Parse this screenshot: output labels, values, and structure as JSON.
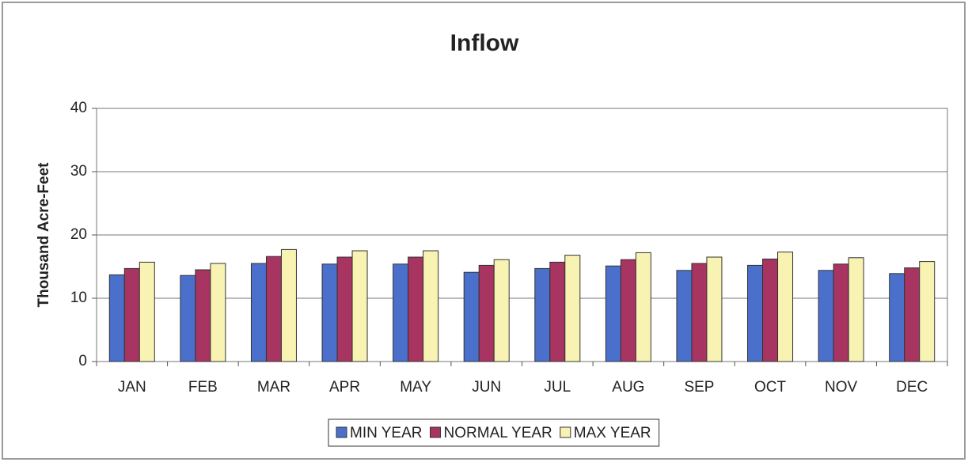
{
  "chart_data": {
    "type": "bar",
    "title": "Inflow",
    "y_label": "Thousand Acre-Feet",
    "categories": [
      "JAN",
      "FEB",
      "MAR",
      "APR",
      "MAY",
      "JUN",
      "JUL",
      "AUG",
      "SEP",
      "OCT",
      "NOV",
      "DEC"
    ],
    "series": [
      {
        "name": "MIN YEAR",
        "color": "#4a70cc",
        "values": [
          13.7,
          13.6,
          15.5,
          15.4,
          15.4,
          14.1,
          14.7,
          15.1,
          14.4,
          15.2,
          14.4,
          13.9
        ]
      },
      {
        "name": "NORMAL YEAR",
        "color": "#a83461",
        "values": [
          14.7,
          14.5,
          16.6,
          16.5,
          16.5,
          15.2,
          15.7,
          16.1,
          15.5,
          16.2,
          15.4,
          14.8
        ]
      },
      {
        "name": "MAX YEAR",
        "color": "#f8f3b2",
        "values": [
          15.7,
          15.5,
          17.7,
          17.5,
          17.5,
          16.1,
          16.8,
          17.2,
          16.5,
          17.3,
          16.4,
          15.8
        ]
      }
    ],
    "ylim": [
      0,
      40
    ],
    "yticks": [
      0,
      10,
      20,
      30,
      40
    ],
    "grid": true,
    "legend": "bottom"
  }
}
